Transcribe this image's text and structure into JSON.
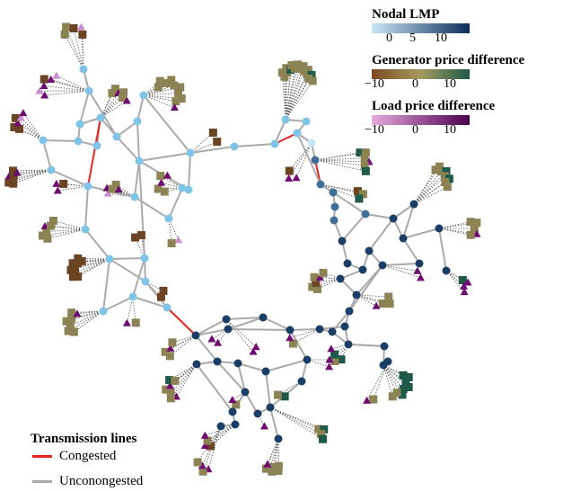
{
  "legend": {
    "lmp": {
      "title": "Nodal LMP",
      "ticks": [
        "0",
        "5",
        "10"
      ],
      "color_from": "#c7e7f7",
      "color_to": "#0d2d5a"
    },
    "gen": {
      "title": "Generator price difference",
      "ticks": [
        "−10",
        "0",
        "10"
      ],
      "color_from": "#7a4a22",
      "color_mid": "#a49a5e",
      "color_to": "#1e5a4a"
    },
    "load": {
      "title": "Load price difference",
      "ticks": [
        "−10",
        "0",
        "10"
      ],
      "color_from": "#e7a9dd",
      "color_to": "#4a0050"
    }
  },
  "transmission": {
    "title": "Transmission lines",
    "congested": {
      "label": "Congested",
      "color": "#e8231f"
    },
    "uncongested": {
      "label": "Unconongested",
      "color": "#aaaaaa"
    }
  },
  "colors": {
    "bus_light": "#7fc3e6",
    "bus_dark": "#1b3e66",
    "bus_mid": "#3f6f99",
    "gen_brown": "#6b4423",
    "gen_olive": "#8c8354",
    "gen_green": "#1e5a4a",
    "load_purple": "#6e0a72",
    "load_pink": "#c88ed0"
  }
}
